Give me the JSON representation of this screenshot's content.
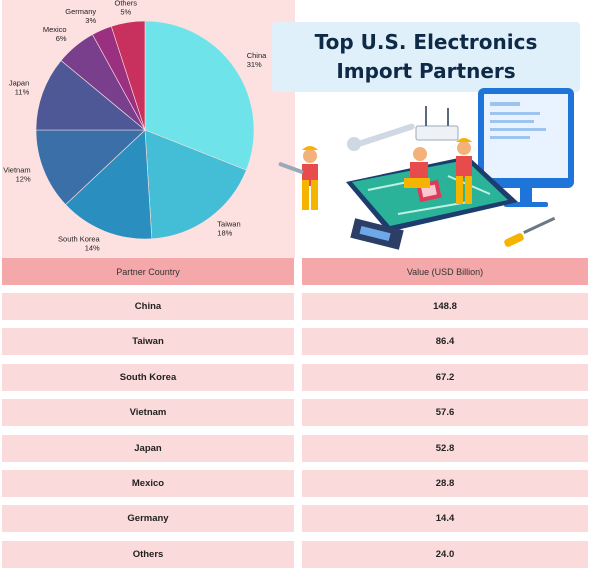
{
  "chart_data": {
    "type": "pie",
    "title": "Top U.S. Electronics Import Partners",
    "slices": [
      {
        "label": "China",
        "percent": 31,
        "value": 148.8,
        "color": "#6ee3ea"
      },
      {
        "label": "Taiwan",
        "percent": 18,
        "value": 86.4,
        "color": "#44bdd6"
      },
      {
        "label": "South Korea",
        "percent": 14,
        "value": 67.2,
        "color": "#2a8fbf"
      },
      {
        "label": "Vietnam",
        "percent": 12,
        "value": 57.6,
        "color": "#3a6fa8"
      },
      {
        "label": "Japan",
        "percent": 11,
        "value": 52.8,
        "color": "#4f5896"
      },
      {
        "label": "Mexico",
        "percent": 6,
        "value": 28.8,
        "color": "#7a3f8c"
      },
      {
        "label": "Germany",
        "percent": 3,
        "value": 14.4,
        "color": "#9b2f80"
      },
      {
        "label": "Others",
        "percent": 5,
        "value": 24.0,
        "color": "#c8315e"
      }
    ]
  },
  "title": {
    "line1": "Top U.S. Electronics",
    "line2": "Import Partners"
  },
  "table": {
    "headers": [
      "Partner Country",
      "Value (USD Billion)"
    ],
    "rows": [
      [
        "China",
        "148.8"
      ],
      [
        "Taiwan",
        "86.4"
      ],
      [
        "South Korea",
        "67.2"
      ],
      [
        "Vietnam",
        "57.6"
      ],
      [
        "Japan",
        "52.8"
      ],
      [
        "Mexico",
        "28.8"
      ],
      [
        "Germany",
        "14.4"
      ],
      [
        "Others",
        "24.0"
      ]
    ]
  }
}
